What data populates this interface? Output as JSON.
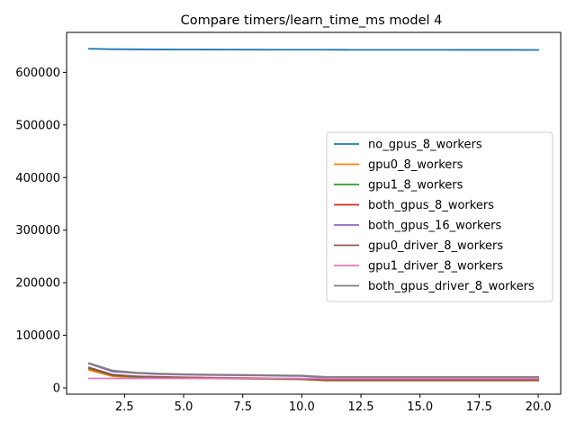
{
  "chart_data": {
    "type": "line",
    "title": "Compare timers/learn_time_ms model 4",
    "xlabel": "",
    "ylabel": "",
    "xlim": [
      0.05,
      20.95
    ],
    "ylim": [
      -12000,
      676000
    ],
    "x_ticks": [
      2.5,
      5.0,
      7.5,
      10.0,
      12.5,
      15.0,
      17.5,
      20.0
    ],
    "x_tick_labels": [
      "2.5",
      "5.0",
      "7.5",
      "10.0",
      "12.5",
      "15.0",
      "17.5",
      "20.0"
    ],
    "y_ticks": [
      0,
      100000,
      200000,
      300000,
      400000,
      500000,
      600000
    ],
    "y_tick_labels": [
      "0",
      "100000",
      "200000",
      "300000",
      "400000",
      "500000",
      "600000"
    ],
    "grid": false,
    "legend_position": "center-right",
    "x": [
      1,
      2,
      3,
      4,
      5,
      6,
      7,
      8,
      9,
      10,
      11,
      12,
      13,
      14,
      15,
      16,
      17,
      18,
      19,
      20
    ],
    "series": [
      {
        "name": "no_gpus_8_workers",
        "color": "#1f77b4",
        "values": [
          645000,
          644000,
          643800,
          643600,
          643500,
          643400,
          643300,
          643200,
          643100,
          643000,
          643000,
          642900,
          642900,
          642800,
          642800,
          642800,
          642700,
          642700,
          642700,
          642600
        ]
      },
      {
        "name": "gpu0_8_workers",
        "color": "#ff7f0e",
        "values": [
          34000,
          22000,
          20000,
          19000,
          18500,
          18000,
          17500,
          17000,
          16500,
          16000,
          14000,
          14000,
          14000,
          14000,
          14000,
          14000,
          14000,
          14000,
          14000,
          14000
        ]
      },
      {
        "name": "gpu1_8_workers",
        "color": "#2ca02c",
        "values": [
          37000,
          24000,
          21000,
          20000,
          19000,
          18500,
          18000,
          17500,
          17000,
          16500,
          14500,
          14500,
          14500,
          14500,
          14500,
          14500,
          14500,
          14500,
          14500,
          14500
        ]
      },
      {
        "name": "both_gpus_8_workers",
        "color": "#d62728",
        "values": [
          38000,
          25000,
          22000,
          21000,
          20000,
          19500,
          19000,
          18500,
          18000,
          17500,
          15000,
          15000,
          15000,
          15000,
          15000,
          15000,
          15000,
          15000,
          15000,
          15000
        ]
      },
      {
        "name": "both_gpus_16_workers",
        "color": "#9467bd",
        "values": [
          46000,
          31000,
          28000,
          26000,
          25000,
          24500,
          24000,
          23500,
          23000,
          22500,
          20000,
          20000,
          20000,
          20000,
          20000,
          20000,
          20000,
          20000,
          20000,
          20000
        ]
      },
      {
        "name": "gpu0_driver_8_workers",
        "color": "#8c564b",
        "values": [
          39000,
          25000,
          22000,
          20500,
          19500,
          19000,
          18500,
          18000,
          17500,
          17000,
          14500,
          14500,
          14500,
          14500,
          14500,
          14500,
          14500,
          14500,
          14500,
          14500
        ]
      },
      {
        "name": "gpu1_driver_8_workers",
        "color": "#e377c2",
        "values": [
          18000,
          18000,
          18000,
          18000,
          18000,
          18000,
          18000,
          18000,
          18000,
          18000,
          18000,
          18000,
          18000,
          18000,
          18000,
          18000,
          18000,
          18000,
          18000,
          18000
        ]
      },
      {
        "name": "both_gpus_driver_8_workers",
        "color": "#7f7f7f",
        "values": [
          47000,
          33000,
          29000,
          27000,
          26000,
          25500,
          25000,
          24500,
          24000,
          23500,
          21000,
          21000,
          21000,
          21000,
          21000,
          21000,
          21000,
          21000,
          21000,
          21000
        ]
      }
    ]
  }
}
